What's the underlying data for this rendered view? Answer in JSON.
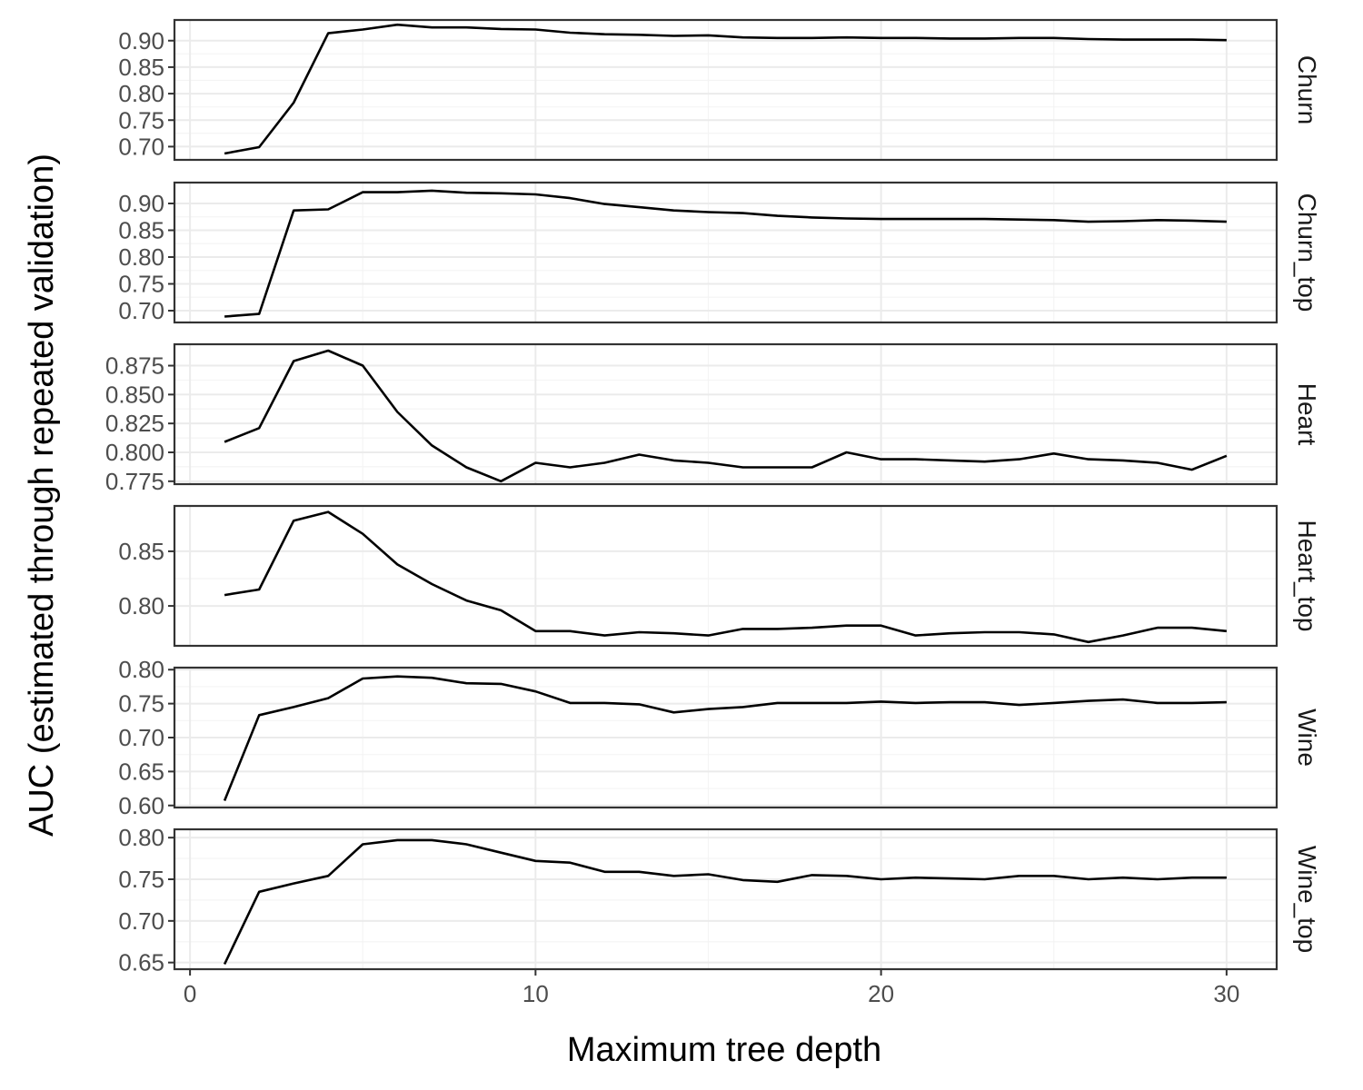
{
  "chart_data": {
    "type": "line",
    "facet": "rows",
    "xlabel": "Maximum tree depth",
    "ylabel": "AUC (estimated through repeated validation)",
    "xlim": [
      -0.45,
      31.45
    ],
    "x_ticks": [
      0,
      10,
      20,
      30
    ],
    "x_tick_labels": [
      "0",
      "10",
      "20",
      "30"
    ],
    "grid": true,
    "x": [
      1,
      2,
      3,
      4,
      5,
      6,
      7,
      8,
      9,
      10,
      11,
      12,
      13,
      14,
      15,
      16,
      17,
      18,
      19,
      20,
      21,
      22,
      23,
      24,
      25,
      26,
      27,
      28,
      29,
      30
    ],
    "panels": [
      {
        "name": "Churn",
        "ylim": [
          0.675,
          0.939
        ],
        "y_ticks": [
          0.7,
          0.75,
          0.8,
          0.85,
          0.9
        ],
        "y_tick_labels": [
          "0.70",
          "0.75",
          "0.80",
          "0.85",
          "0.90"
        ],
        "values": [
          0.687,
          0.699,
          0.783,
          0.914,
          0.921,
          0.93,
          0.925,
          0.925,
          0.922,
          0.921,
          0.915,
          0.912,
          0.911,
          0.909,
          0.91,
          0.906,
          0.905,
          0.905,
          0.906,
          0.905,
          0.905,
          0.904,
          0.904,
          0.905,
          0.905,
          0.903,
          0.902,
          0.902,
          0.902,
          0.901
        ]
      },
      {
        "name": "Churn_top",
        "ylim": [
          0.678,
          0.939
        ],
        "y_ticks": [
          0.7,
          0.75,
          0.8,
          0.85,
          0.9
        ],
        "y_tick_labels": [
          "0.70",
          "0.75",
          "0.80",
          "0.85",
          "0.90"
        ],
        "values": [
          0.689,
          0.694,
          0.887,
          0.889,
          0.921,
          0.921,
          0.924,
          0.92,
          0.919,
          0.917,
          0.91,
          0.899,
          0.893,
          0.887,
          0.884,
          0.882,
          0.877,
          0.874,
          0.872,
          0.871,
          0.871,
          0.871,
          0.871,
          0.87,
          0.869,
          0.866,
          0.867,
          0.869,
          0.868,
          0.866
        ]
      },
      {
        "name": "Heart",
        "ylim": [
          0.7725,
          0.8935
        ],
        "y_ticks": [
          0.775,
          0.8,
          0.825,
          0.85,
          0.875
        ],
        "y_tick_labels": [
          "0.775",
          "0.800",
          "0.825",
          "0.850",
          "0.875"
        ],
        "values": [
          0.809,
          0.821,
          0.879,
          0.888,
          0.875,
          0.835,
          0.806,
          0.787,
          0.775,
          0.791,
          0.787,
          0.791,
          0.798,
          0.793,
          0.791,
          0.787,
          0.787,
          0.787,
          0.8,
          0.794,
          0.794,
          0.793,
          0.792,
          0.794,
          0.799,
          0.794,
          0.793,
          0.791,
          0.785,
          0.797
        ]
      },
      {
        "name": "Heart_top",
        "ylim": [
          0.7635,
          0.8915
        ],
        "y_ticks": [
          0.8,
          0.85
        ],
        "y_tick_labels": [
          "0.80",
          "0.85"
        ],
        "values": [
          0.81,
          0.815,
          0.878,
          0.886,
          0.866,
          0.838,
          0.82,
          0.805,
          0.796,
          0.777,
          0.777,
          0.773,
          0.776,
          0.775,
          0.773,
          0.779,
          0.779,
          0.78,
          0.782,
          0.782,
          0.773,
          0.775,
          0.776,
          0.776,
          0.774,
          0.767,
          0.773,
          0.78,
          0.78,
          0.777
        ]
      },
      {
        "name": "Wine",
        "ylim": [
          0.597,
          0.803
        ],
        "y_ticks": [
          0.6,
          0.65,
          0.7,
          0.75,
          0.8
        ],
        "y_tick_labels": [
          "0.60",
          "0.65",
          "0.70",
          "0.75",
          "0.80"
        ],
        "values": [
          0.607,
          0.733,
          0.745,
          0.758,
          0.787,
          0.79,
          0.788,
          0.78,
          0.779,
          0.768,
          0.751,
          0.751,
          0.749,
          0.737,
          0.742,
          0.745,
          0.751,
          0.751,
          0.751,
          0.753,
          0.751,
          0.752,
          0.752,
          0.748,
          0.751,
          0.754,
          0.756,
          0.751,
          0.751,
          0.752
        ]
      },
      {
        "name": "Wine_top",
        "ylim": [
          0.642,
          0.81
        ],
        "y_ticks": [
          0.65,
          0.7,
          0.75,
          0.8
        ],
        "y_tick_labels": [
          "0.65",
          "0.70",
          "0.75",
          "0.80"
        ],
        "values": [
          0.648,
          0.735,
          0.745,
          0.754,
          0.792,
          0.797,
          0.797,
          0.792,
          0.782,
          0.772,
          0.77,
          0.759,
          0.759,
          0.754,
          0.756,
          0.749,
          0.747,
          0.755,
          0.754,
          0.75,
          0.752,
          0.751,
          0.75,
          0.754,
          0.754,
          0.75,
          0.752,
          0.75,
          0.752,
          0.752
        ]
      }
    ]
  }
}
